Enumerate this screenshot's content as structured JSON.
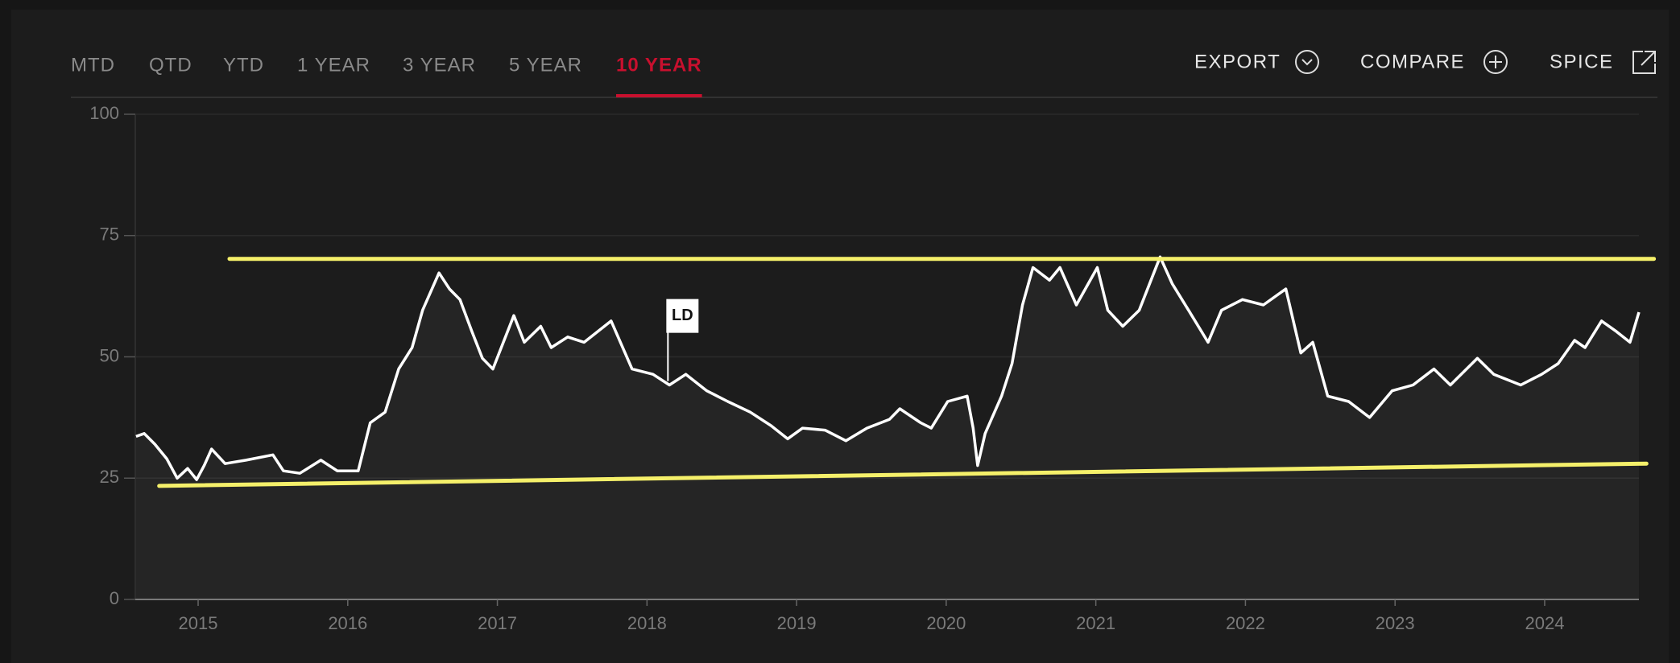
{
  "tabs": [
    "MTD",
    "QTD",
    "YTD",
    "1 YEAR",
    "3 YEAR",
    "5 YEAR",
    "10 YEAR"
  ],
  "active_tab": 6,
  "active_color": "#c8102e",
  "actions": [
    "EXPORT",
    "COMPARE",
    "SPICE"
  ],
  "chart_data": {
    "type": "line",
    "xlim": [
      2014.58,
      2024.63
    ],
    "xticks": [
      2015,
      2016,
      2017,
      2018,
      2019,
      2020,
      2021,
      2022,
      2023,
      2024
    ],
    "ylim": [
      0,
      100
    ],
    "yticks": [
      0,
      25,
      50,
      75,
      100
    ],
    "grid": true,
    "series": [
      {
        "color": "#ffffff",
        "x": [
          2014.585,
          2014.64,
          2014.71,
          2014.79,
          2014.86,
          2014.93,
          2014.99,
          2015.04,
          2015.09,
          2015.18,
          2015.32,
          2015.5,
          2015.57,
          2015.68,
          2015.82,
          2015.93,
          2016.07,
          2016.15,
          2016.25,
          2016.34,
          2016.43,
          2016.5,
          2016.61,
          2016.68,
          2016.75,
          2016.83,
          2016.9,
          2016.97,
          2017.04,
          2017.11,
          2017.18,
          2017.29,
          2017.36,
          2017.47,
          2017.58,
          2017.76,
          2017.9,
          2018.04,
          2018.15,
          2018.26,
          2018.4,
          2018.54,
          2018.69,
          2018.83,
          2018.94,
          2019.04,
          2019.19,
          2019.33,
          2019.47,
          2019.62,
          2019.69,
          2019.83,
          2019.9,
          2020.01,
          2020.14,
          2020.18,
          2020.21,
          2020.26,
          2020.37,
          2020.44,
          2020.51,
          2020.58,
          2020.69,
          2020.76,
          2020.87,
          2021.01,
          2021.08,
          2021.18,
          2021.29,
          2021.43,
          2021.51,
          2021.62,
          2021.75,
          2021.84,
          2021.98,
          2022.12,
          2022.27,
          2022.37,
          2022.45,
          2022.55,
          2022.69,
          2022.83,
          2022.98,
          2023.12,
          2023.26,
          2023.37,
          2023.55,
          2023.66,
          2023.84,
          2023.98,
          2024.09,
          2024.2,
          2024.27,
          2024.38,
          2024.48,
          2024.57,
          2024.63
        ],
        "values": [
          33.6,
          34.2,
          32,
          29,
          25,
          27,
          24.7,
          27.6,
          31,
          28,
          28.7,
          29.8,
          26.5,
          26,
          28.7,
          26.5,
          26.5,
          36.4,
          38.6,
          47.5,
          51.9,
          59.6,
          67.3,
          64,
          61.8,
          55.2,
          49.7,
          47.5,
          53,
          58.5,
          53,
          56.3,
          51.9,
          54.1,
          53,
          57.4,
          47.5,
          46.4,
          44.2,
          46.4,
          43,
          40.8,
          38.6,
          35.8,
          33.1,
          35.3,
          34.9,
          32.7,
          35.3,
          37.1,
          39.3,
          36.4,
          35.3,
          40.8,
          41.9,
          35.3,
          27.6,
          34.2,
          41.9,
          48.6,
          60.7,
          68.4,
          65.8,
          68.4,
          60.7,
          68.4,
          59.6,
          56.3,
          59.6,
          70.6,
          65.1,
          59.6,
          53,
          59.6,
          61.8,
          60.7,
          64,
          50.8,
          53,
          41.9,
          40.8,
          37.5,
          43,
          44.2,
          47.5,
          44.2,
          49.7,
          46.4,
          44.2,
          46.4,
          48.6,
          53.4,
          51.9,
          57.4,
          55.2,
          53,
          59.2
        ]
      }
    ],
    "trendlines": [
      {
        "color": "#f5f06a",
        "x": [
          2015.21,
          2024.73
        ],
        "values": [
          70.2,
          70.2
        ]
      },
      {
        "color": "#f5f06a",
        "x": [
          2014.74,
          2024.68
        ],
        "values": [
          23.4,
          28.0
        ]
      }
    ],
    "markers": [
      {
        "label": "LD",
        "x": 2018.14,
        "value": 45
      }
    ]
  }
}
